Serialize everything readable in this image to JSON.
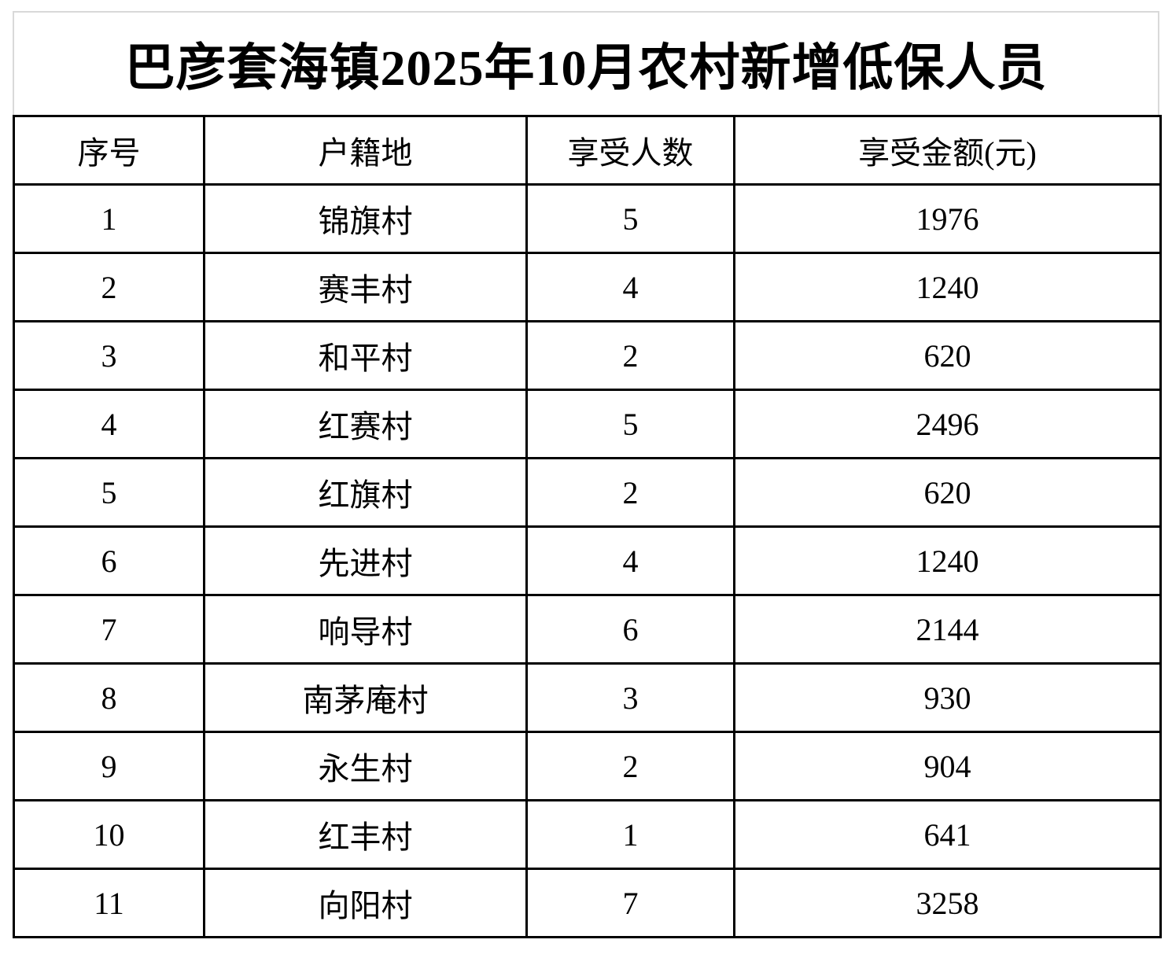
{
  "title": "巴彦套海镇2025年10月农村新增低保人员",
  "table": {
    "columns": [
      "序号",
      "户籍地",
      "享受人数",
      "享受金额(元)"
    ],
    "rows": [
      [
        "1",
        "锦旗村",
        "5",
        "1976"
      ],
      [
        "2",
        "赛丰村",
        "4",
        "1240"
      ],
      [
        "3",
        "和平村",
        "2",
        "620"
      ],
      [
        "4",
        "红赛村",
        "5",
        "2496"
      ],
      [
        "5",
        "红旗村",
        "2",
        "620"
      ],
      [
        "6",
        "先进村",
        "4",
        "1240"
      ],
      [
        "7",
        "响导村",
        "6",
        "2144"
      ],
      [
        "8",
        "南茅庵村",
        "3",
        "930"
      ],
      [
        "9",
        "永生村",
        "2",
        "904"
      ],
      [
        "10",
        "红丰村",
        "1",
        "641"
      ],
      [
        "11",
        "向阳村",
        "7",
        "3258"
      ]
    ]
  },
  "colors": {
    "background": "#ffffff",
    "text": "#000000",
    "table_border": "#000000",
    "title_cell_border": "#d9d9d9"
  }
}
